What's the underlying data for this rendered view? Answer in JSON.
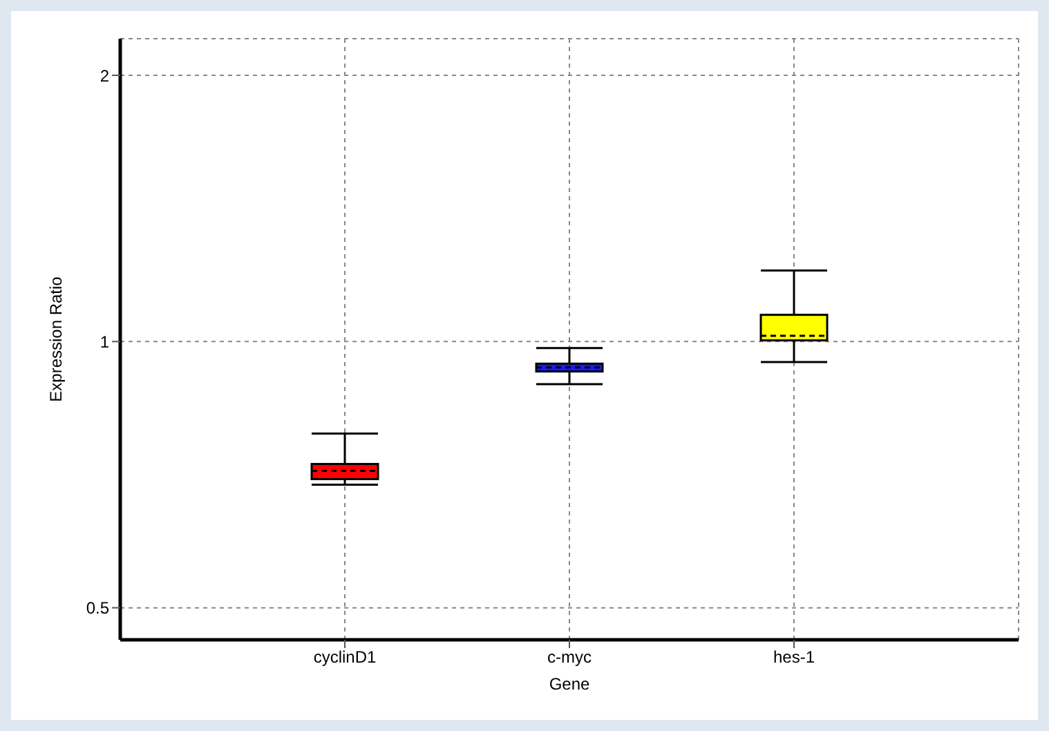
{
  "chart_data": {
    "type": "box",
    "xlabel": "Gene",
    "ylabel": "Expression Ratio",
    "categories": [
      "cyclinD1",
      "c-myc",
      "hes-1"
    ],
    "boxes": [
      {
        "low": 0.689,
        "q1": 0.699,
        "median": 0.714,
        "q3": 0.727,
        "high": 0.787
      },
      {
        "low": 0.895,
        "q1": 0.925,
        "median": 0.935,
        "q3": 0.944,
        "high": 0.983
      },
      {
        "low": 0.948,
        "q1": 1.003,
        "median": 1.015,
        "q3": 1.072,
        "high": 1.203
      }
    ],
    "colors": [
      "#ff0000",
      "#1a1aff",
      "#ffff00"
    ],
    "log": true,
    "ylim": [
      0.46,
      2.2
    ],
    "yticks": [
      0.5,
      1,
      2
    ],
    "grid": true
  }
}
